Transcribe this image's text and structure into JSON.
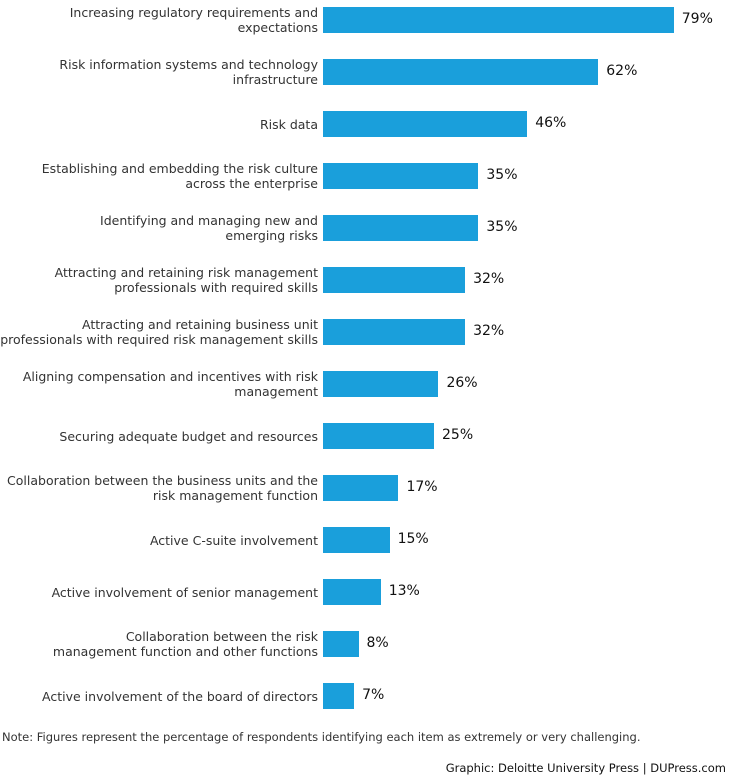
{
  "chart_data": {
    "type": "bar",
    "orientation": "horizontal",
    "categories": [
      "Increasing regulatory requirements and expectations",
      "Risk information systems and technology infrastructure",
      "Risk data",
      "Establishing and embedding the risk culture across the enterprise",
      "Identifying and managing new and emerging risks",
      "Attracting and retaining risk management professionals with required skills",
      "Attracting and retaining business unit professionals with required risk management skills",
      "Aligning compensation and incentives with risk management",
      "Securing adequate budget and resources",
      "Collaboration between the business units and the risk management function",
      "Active C-suite involvement",
      "Active involvement of senior management",
      "Collaboration between the risk management function and other functions",
      "Active involvement of the board of directors"
    ],
    "label_lines": [
      [
        "Increasing regulatory requirements and",
        "expectations"
      ],
      [
        "Risk information systems and technology",
        "infrastructure"
      ],
      [
        "Risk data"
      ],
      [
        "Establishing and embedding the risk culture",
        "across the enterprise"
      ],
      [
        "Identifying and managing new and",
        "emerging risks"
      ],
      [
        "Attracting and retaining risk management",
        "professionals with required skills"
      ],
      [
        "Attracting and retaining business unit",
        "professionals with required risk management skills"
      ],
      [
        "Aligning compensation and incentives with risk",
        "management"
      ],
      [
        "Securing adequate budget and resources"
      ],
      [
        "Collaboration between the business units and the",
        "risk management function"
      ],
      [
        "Active C-suite involvement"
      ],
      [
        "Active involvement of senior management"
      ],
      [
        "Collaboration between the risk",
        "management function and other functions"
      ],
      [
        "Active involvement of the board of directors"
      ]
    ],
    "values": [
      79,
      62,
      46,
      35,
      35,
      32,
      32,
      26,
      25,
      17,
      15,
      13,
      8,
      7
    ],
    "value_labels": [
      "79%",
      "62%",
      "46%",
      "35%",
      "35%",
      "32%",
      "32%",
      "26%",
      "25%",
      "17%",
      "15%",
      "13%",
      "8%",
      "7%"
    ],
    "unit": "%",
    "xlim": [
      0,
      100
    ],
    "grid": false,
    "bar_color": "#1a9fdb"
  },
  "note": "Note: Figures represent the percentage of respondents identifying each item as extremely or very challenging.",
  "credit": "Graphic: Deloitte University Press  |  DUPress.com"
}
